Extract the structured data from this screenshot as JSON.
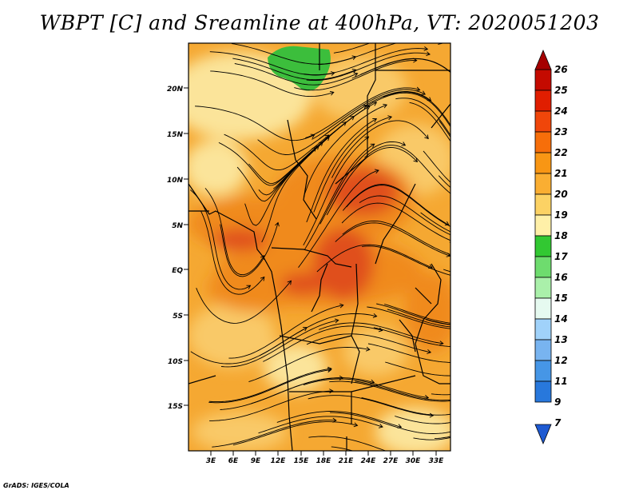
{
  "title": "WBPT [C] and Sreamline at 400hPa, VT: 2020051203",
  "credit": "GrADS: IGES/COLA",
  "map": {
    "lon_labels": [
      "3E",
      "6E",
      "9E",
      "12E",
      "15E",
      "18E",
      "21E",
      "24E",
      "27E",
      "30E",
      "33E"
    ],
    "lat_labels": [
      "20N",
      "15N",
      "10N",
      "5N",
      "EQ",
      "5S",
      "10S",
      "15S"
    ],
    "lon_range": [
      0,
      35
    ],
    "lat_range": [
      -20,
      24.5
    ],
    "fill_colors": {
      "orange_red": "#e0501e",
      "orange": "#f08a1c",
      "light_orange": "#f5a832",
      "pale_orange": "#f9c968",
      "pale_yellow": "#fbe49a",
      "green": "#3cbe3c"
    }
  },
  "colorbar": {
    "labels": [
      "26",
      "25",
      "24",
      "23",
      "22",
      "21",
      "20",
      "19",
      "18",
      "17",
      "16",
      "15",
      "14",
      "13",
      "12",
      "11",
      "9",
      "7"
    ],
    "colors": [
      "#a50000",
      "#c40a00",
      "#e01e00",
      "#f0460a",
      "#f66e0a",
      "#f89614",
      "#faae32",
      "#fcd264",
      "#fff0a8",
      "#32c832",
      "#6edc6e",
      "#aaf0aa",
      "#e6faf0",
      "#a0d2fa",
      "#78b4f0",
      "#4696e6",
      "#2878dc",
      "#1e5ad2"
    ]
  }
}
